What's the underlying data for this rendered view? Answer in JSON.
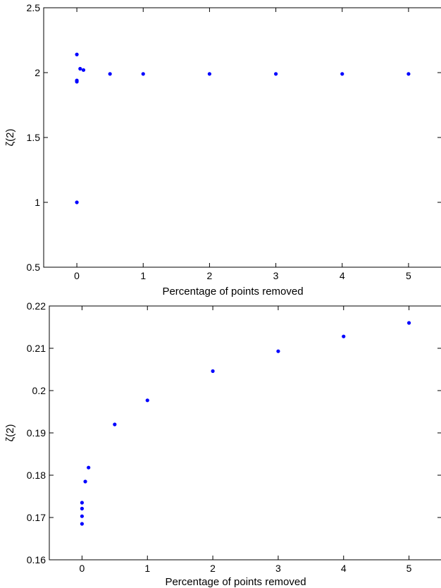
{
  "chart_data": [
    {
      "type": "scatter",
      "title": "",
      "xlabel": "Percentage of points removed",
      "ylabel": "ζ(2)",
      "xlim": [
        -0.5,
        5.5
      ],
      "ylim": [
        0.5,
        2.5
      ],
      "xticks": [
        0,
        1,
        2,
        3,
        4,
        5
      ],
      "xtick_labels": [
        "0",
        "1",
        "2",
        "3",
        "4",
        "5"
      ],
      "yticks": [
        0.5,
        1,
        1.5,
        2,
        2.5
      ],
      "ytick_labels": [
        "0.5",
        "1",
        "1.5",
        "2",
        "2.5"
      ],
      "grid": false,
      "marker_color": "#0000ff",
      "points": [
        {
          "x": 0,
          "y": 2.14
        },
        {
          "x": 0,
          "y": 1.94
        },
        {
          "x": 0,
          "y": 1.93
        },
        {
          "x": 0,
          "y": 1.0
        },
        {
          "x": 0.05,
          "y": 2.03
        },
        {
          "x": 0.1,
          "y": 2.02
        },
        {
          "x": 0.5,
          "y": 1.99
        },
        {
          "x": 1,
          "y": 1.99
        },
        {
          "x": 2,
          "y": 1.99
        },
        {
          "x": 3,
          "y": 1.99
        },
        {
          "x": 4,
          "y": 1.99
        },
        {
          "x": 5,
          "y": 1.99
        }
      ]
    },
    {
      "type": "scatter",
      "title": "",
      "xlabel": "Percentage of points removed",
      "ylabel": "ζ(2)",
      "xlim": [
        -0.5,
        5.5
      ],
      "ylim": [
        0.16,
        0.22
      ],
      "xticks": [
        0,
        1,
        2,
        3,
        4,
        5
      ],
      "xtick_labels": [
        "0",
        "1",
        "2",
        "3",
        "4",
        "5"
      ],
      "yticks": [
        0.16,
        0.17,
        0.18,
        0.19,
        0.2,
        0.21,
        0.22
      ],
      "ytick_labels": [
        "0.16",
        "0.17",
        "0.18",
        "0.19",
        "0.2",
        "0.21",
        "0.22"
      ],
      "grid": false,
      "marker_color": "#0000ff",
      "points": [
        {
          "x": 0,
          "y": 0.1735
        },
        {
          "x": 0,
          "y": 0.1721
        },
        {
          "x": 0,
          "y": 0.1703
        },
        {
          "x": 0,
          "y": 0.1685
        },
        {
          "x": 0.05,
          "y": 0.1785
        },
        {
          "x": 0.1,
          "y": 0.1818
        },
        {
          "x": 0.5,
          "y": 0.192
        },
        {
          "x": 1,
          "y": 0.1977
        },
        {
          "x": 2,
          "y": 0.2046
        },
        {
          "x": 3,
          "y": 0.2093
        },
        {
          "x": 4,
          "y": 0.2128
        },
        {
          "x": 5,
          "y": 0.216
        }
      ]
    }
  ]
}
